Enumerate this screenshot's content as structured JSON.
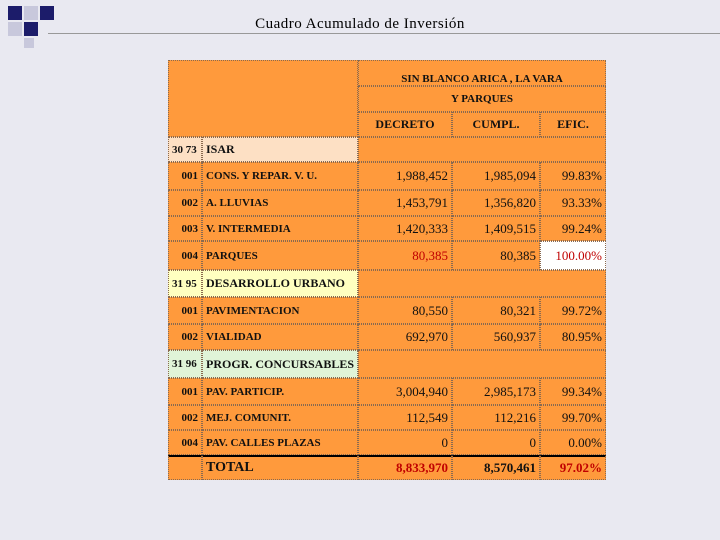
{
  "title": "Cuadro Acumulado de Inversión",
  "table": {
    "header": [
      "SIN BLANCO ARICA , LA VARA",
      "Y PARQUES"
    ],
    "columns": [
      "DECRETO",
      "CUMPL.",
      "EFIC."
    ],
    "rows": [
      [
        "30 73",
        "ISAR"
      ],
      [
        "001",
        "CONS. Y REPAR. V. U.",
        "1,988,452",
        "1,985,094",
        "99.83%"
      ],
      [
        "002",
        "A. LLUVIAS",
        "1,453,791",
        "1,356,820",
        "93.33%"
      ],
      [
        "003",
        "V. INTERMEDIA",
        "1,420,333",
        "1,409,515",
        "99.24%"
      ],
      [
        "004",
        "PARQUES",
        "80,385",
        "80,385",
        "100.00%"
      ],
      [
        "31 95",
        "DESARROLLO URBANO"
      ],
      [
        "001",
        "PAVIMENTACION",
        "80,550",
        "80,321",
        "99.72%"
      ],
      [
        "002",
        "VIALIDAD",
        "692,970",
        "560,937",
        "80.95%"
      ],
      [
        "31 96",
        "PROGR. CONCURSABLES"
      ],
      [
        "001",
        "PAV. PARTICIP.",
        "3,004,940",
        "2,985,173",
        "99.34%"
      ],
      [
        "002",
        "MEJ. COMUNIT.",
        "112,549",
        "112,216",
        "99.70%"
      ],
      [
        "004",
        "PAV. CALLES PLAZAS",
        "0",
        "0",
        "0.00%"
      ]
    ],
    "total": {
      "label": "TOTAL",
      "values": [
        "8,833,970",
        "8,570,461",
        "97.02%"
      ]
    }
  }
}
